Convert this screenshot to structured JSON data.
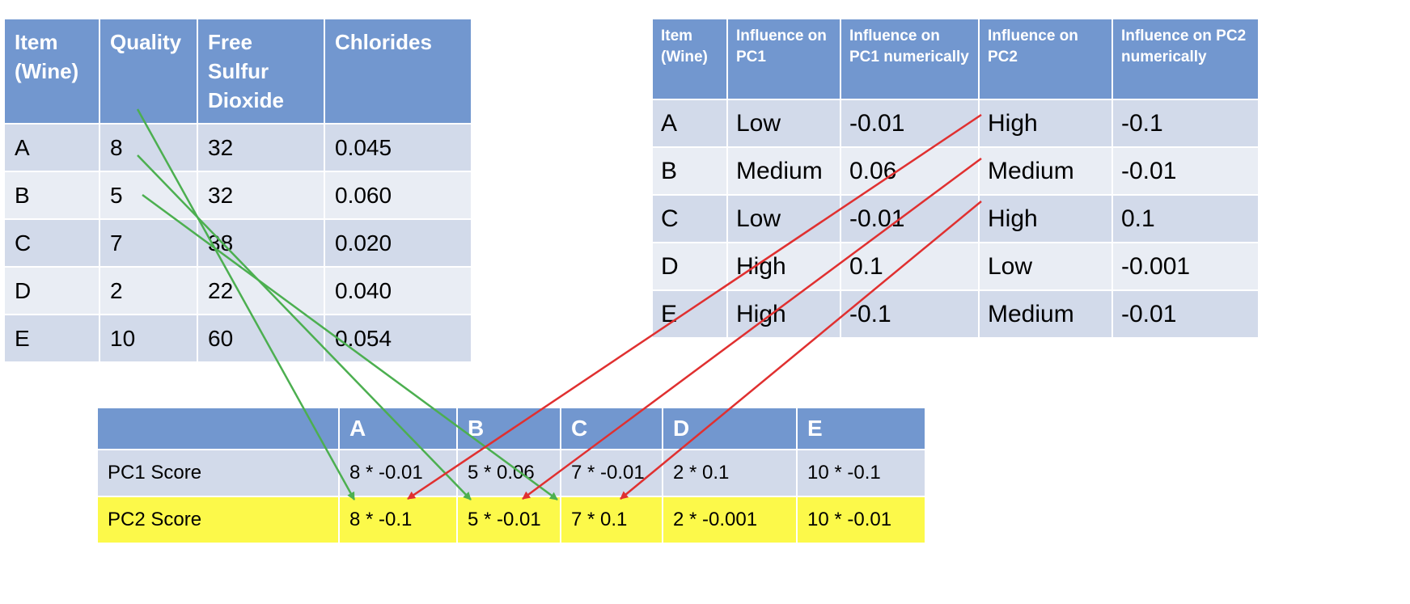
{
  "quality_table": {
    "headers": [
      "Item (Wine)",
      "Quality",
      "Free Sulfur Dioxide",
      "Chlorides"
    ],
    "rows": [
      [
        "A",
        "8",
        "32",
        "0.045"
      ],
      [
        "B",
        "5",
        "32",
        "0.060"
      ],
      [
        "C",
        "7",
        "38",
        "0.020"
      ],
      [
        "D",
        "2",
        "22",
        "0.040"
      ],
      [
        "E",
        "10",
        "60",
        "0.054"
      ]
    ]
  },
  "influence_table": {
    "headers": [
      "Item (Wine)",
      "Influence on PC1",
      "Influence on PC1 numerically",
      "Influence on PC2",
      "Influence on PC2 numerically"
    ],
    "rows": [
      [
        "A",
        "Low",
        "-0.01",
        "High",
        "-0.1"
      ],
      [
        "B",
        "Medium",
        "0.06",
        "Medium",
        "-0.01"
      ],
      [
        "C",
        "Low",
        "-0.01",
        "High",
        "0.1"
      ],
      [
        "D",
        "High",
        "0.1",
        "Low",
        "-0.001"
      ],
      [
        "E",
        "High",
        "-0.1",
        "Medium",
        "-0.01"
      ]
    ]
  },
  "score_table": {
    "headers": [
      "",
      "A",
      "B",
      "C",
      "D",
      "E"
    ],
    "rows": [
      [
        "PC1 Score",
        "8 * -0.01",
        "5 * 0.06",
        "7 * -0.01",
        "2 * 0.1",
        "10 * -0.1"
      ],
      [
        "PC2 Score",
        "8 * -0.1",
        "5 * -0.01",
        "7 * 0.1",
        "2 * -0.001",
        "10 * -0.01"
      ]
    ]
  },
  "colors": {
    "header_blue": "#7297cf",
    "row_dark": "#d2daea",
    "row_light": "#e9edf4",
    "highlight_yellow": "#fcf94a",
    "quality_arrow": "#4caf50",
    "influence_arrow": "#e03030"
  }
}
